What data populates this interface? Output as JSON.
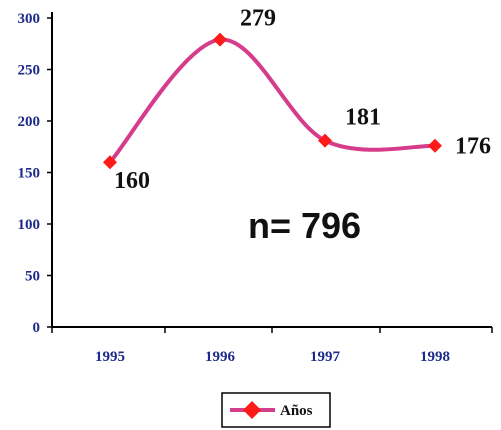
{
  "chart_data": {
    "type": "line",
    "title": "",
    "xlabel": "",
    "ylabel": "",
    "categories": [
      "1995",
      "1996",
      "1997",
      "1998"
    ],
    "series": [
      {
        "name": "Años",
        "values": [
          160,
          279,
          181,
          176
        ]
      }
    ],
    "data_labels": [
      "160",
      "279",
      "181",
      "176"
    ],
    "ylim": [
      0,
      300
    ],
    "yticks": [
      "0",
      "50",
      "100",
      "150",
      "200",
      "250",
      "300"
    ],
    "annotation": "n= 796",
    "grid": false,
    "legend": "bottom-center",
    "colors": {
      "line": "#d63c8c",
      "marker": "#ff1a1a",
      "ytick_text": "#1e2a8a",
      "xtick_text": "#1e2a8a",
      "axis": "#000000",
      "text": "#111111"
    }
  }
}
